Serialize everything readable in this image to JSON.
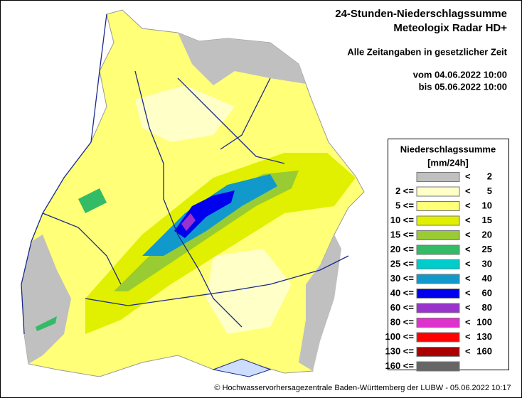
{
  "header": {
    "title_line1": "24-Stunden-Niederschlagssumme",
    "title_line2": "Meteologix Radar HD+",
    "time_note": "Alle Zeitangaben in gesetzlicher Zeit",
    "period_from": "vom 04.06.2022 10:00",
    "period_to": "bis 05.06.2022 10:00"
  },
  "legend": {
    "title": "Niederschlagssumme",
    "unit": "[mm/24h]",
    "rows": [
      {
        "lt": "<",
        "to": "2",
        "color": "#c0c0c0"
      },
      {
        "from": "2 <=",
        "lt": "<",
        "to": "5",
        "color": "#ffffc8"
      },
      {
        "from": "5 <=",
        "lt": "<",
        "to": "10",
        "color": "#ffff78"
      },
      {
        "from": "10 <=",
        "lt": "<",
        "to": "15",
        "color": "#e0f000"
      },
      {
        "from": "15 <=",
        "lt": "<",
        "to": "20",
        "color": "#99cc33"
      },
      {
        "from": "20 <=",
        "lt": "<",
        "to": "25",
        "color": "#33bb66"
      },
      {
        "from": "25 <=",
        "lt": "<",
        "to": "30",
        "color": "#00cccc"
      },
      {
        "from": "30 <=",
        "lt": "<",
        "to": "40",
        "color": "#1199cc"
      },
      {
        "from": "40 <=",
        "lt": "<",
        "to": "60",
        "color": "#0000ee"
      },
      {
        "from": "60 <=",
        "lt": "<",
        "to": "80",
        "color": "#9933cc"
      },
      {
        "from": "80 <=",
        "lt": "<",
        "to": "100",
        "color": "#dd33cc"
      },
      {
        "from": "100 <=",
        "lt": "<",
        "to": "130",
        "color": "#ff0000"
      },
      {
        "from": "130 <=",
        "lt": "<",
        "to": "160",
        "color": "#aa0000"
      },
      {
        "from": "160 <=",
        "color": "#666666"
      }
    ]
  },
  "footer": "© Hochwasservorhersagezentrale Baden-Württemberg der LUBW - 05.06.2022 10:17"
}
